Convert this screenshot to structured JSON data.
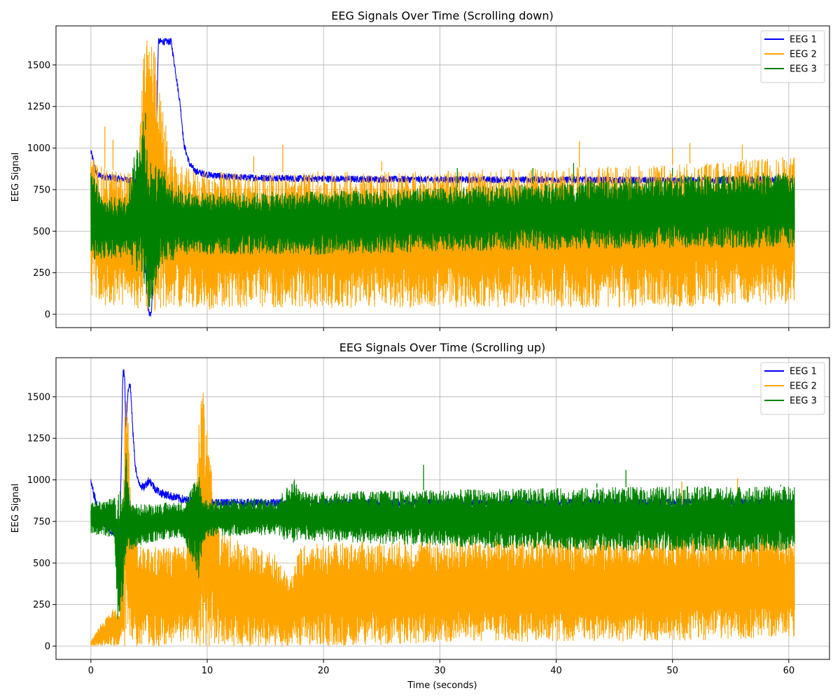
{
  "colors": {
    "EEG 1": "#0000ff",
    "EEG 2": "#ffa500",
    "EEG 3": "#008000",
    "grid": "#b0b0b0"
  },
  "chart_data": [
    {
      "type": "line",
      "title": "EEG Signals Over Time (Scrolling down)",
      "xlabel": "",
      "ylabel": "EEG Signal",
      "xlim": [
        -3,
        63.5
      ],
      "ylim": [
        -80,
        1735
      ],
      "xticks": [
        0,
        10,
        20,
        30,
        40,
        50,
        60
      ],
      "xtick_labels_visible": false,
      "yticks": [
        0,
        250,
        500,
        750,
        1000,
        1250,
        1500
      ],
      "grid": true,
      "legend_position": "top-right",
      "series": [
        {
          "name": "EEG 1",
          "color": "#0000ff",
          "x": [
            0,
            0.5,
            1,
            2,
            3,
            4,
            4.5,
            4.8,
            5.0,
            5.2,
            5.5,
            5.8,
            6.0,
            6.5,
            6.9,
            7.3,
            7.7,
            8.0,
            8.5,
            9.0,
            10,
            12,
            15,
            20,
            30,
            40,
            50,
            60.5
          ],
          "y": [
            980,
            840,
            830,
            820,
            810,
            800,
            500,
            150,
            0,
            0,
            600,
            1640,
            1640,
            1640,
            1640,
            1450,
            1250,
            1020,
            900,
            860,
            840,
            825,
            820,
            815,
            810,
            810,
            805,
            810
          ],
          "noise": 20
        },
        {
          "name": "EEG 2",
          "color": "#ffa500",
          "type": "oscillating-band",
          "x": [
            0,
            1,
            2,
            4,
            4.6,
            5.0,
            5.5,
            6.0,
            7,
            8,
            10,
            15,
            20,
            30,
            40,
            50,
            60.5
          ],
          "high": [
            960,
            880,
            870,
            850,
            1650,
            1650,
            1650,
            1300,
            950,
            880,
            860,
            850,
            860,
            860,
            880,
            900,
            950
          ],
          "low": [
            100,
            50,
            50,
            40,
            0,
            0,
            0,
            0,
            60,
            40,
            30,
            40,
            40,
            40,
            40,
            40,
            60
          ],
          "spikes": [
            [
              1.2,
              1130
            ],
            [
              1.9,
              1050
            ],
            [
              14,
              950
            ],
            [
              16.5,
              1020
            ],
            [
              25,
              920
            ],
            [
              42,
              1040
            ],
            [
              50,
              1000
            ],
            [
              51.5,
              1030
            ],
            [
              56,
              1020
            ]
          ]
        },
        {
          "name": "EEG 3",
          "color": "#008000",
          "type": "oscillating-band",
          "x": [
            0,
            1,
            3,
            4.5,
            5,
            5.5,
            6,
            8,
            10,
            20,
            30,
            40,
            50,
            60.5
          ],
          "high": [
            900,
            700,
            710,
            1210,
            960,
            900,
            880,
            740,
            730,
            740,
            760,
            790,
            830,
            860
          ],
          "low": [
            300,
            340,
            330,
            200,
            0,
            150,
            280,
            360,
            360,
            360,
            380,
            390,
            400,
            400
          ],
          "spikes": [
            [
              4.7,
              1210
            ],
            [
              31.5,
              880
            ],
            [
              38,
              880
            ],
            [
              41.5,
              910
            ],
            [
              50,
              880
            ]
          ]
        }
      ]
    },
    {
      "type": "line",
      "title": "EEG Signals Over Time (Scrolling up)",
      "xlabel": "Time (seconds)",
      "ylabel": "EEG Signal",
      "xlim": [
        -3,
        63.5
      ],
      "ylim": [
        -80,
        1735
      ],
      "xticks": [
        0,
        10,
        20,
        30,
        40,
        50,
        60
      ],
      "xtick_labels_visible": true,
      "yticks": [
        0,
        250,
        500,
        750,
        1000,
        1250,
        1500
      ],
      "grid": true,
      "legend_position": "top-right",
      "series": [
        {
          "name": "EEG 1",
          "color": "#0000ff",
          "x": [
            0,
            0.5,
            1,
            1.5,
            2.0,
            2.5,
            2.75,
            2.9,
            3.0,
            3.2,
            3.4,
            3.6,
            3.8,
            4.0,
            4.5,
            5.0,
            5.5,
            6.0,
            7.0,
            8.0,
            9.0,
            10,
            12,
            20,
            30,
            40,
            50,
            60.5
          ],
          "y": [
            980,
            850,
            750,
            700,
            680,
            700,
            1640,
            1640,
            1300,
            1550,
            1570,
            1300,
            1100,
            1000,
            950,
            1000,
            950,
            920,
            900,
            880,
            870,
            860,
            860,
            860,
            860,
            860,
            860,
            860
          ],
          "noise": 25
        },
        {
          "name": "EEG 2",
          "color": "#ffa500",
          "type": "oscillating-band",
          "x": [
            0,
            1,
            2,
            2.5,
            3.0,
            3.5,
            4,
            6,
            8,
            9,
            9.5,
            10.0,
            11,
            14,
            16,
            17,
            18,
            20,
            30,
            40,
            50,
            60.5
          ],
          "high": [
            30,
            150,
            230,
            180,
            1650,
            900,
            600,
            600,
            600,
            900,
            1650,
            1330,
            700,
            600,
            550,
            400,
            600,
            620,
            640,
            650,
            660,
            680
          ],
          "low": [
            0,
            0,
            0,
            0,
            0,
            0,
            0,
            0,
            0,
            0,
            0,
            0,
            0,
            0,
            0,
            0,
            0,
            0,
            20,
            30,
            30,
            50
          ],
          "spikes": [
            [
              50.8,
              990
            ],
            [
              55.6,
              1010
            ]
          ]
        },
        {
          "name": "EEG 3",
          "color": "#008000",
          "type": "oscillating-band",
          "x": [
            0,
            1,
            2,
            2.3,
            2.8,
            3.0,
            3.3,
            4,
            6,
            8,
            9.3,
            9.6,
            10,
            16,
            17.5,
            18,
            20,
            30,
            40,
            50,
            60.5
          ],
          "high": [
            870,
            880,
            890,
            900,
            1000,
            1200,
            900,
            850,
            860,
            870,
            1050,
            900,
            880,
            890,
            1010,
            930,
            930,
            940,
            950,
            960,
            960
          ],
          "low": [
            680,
            660,
            640,
            120,
            300,
            550,
            560,
            600,
            640,
            650,
            400,
            620,
            660,
            670,
            600,
            640,
            630,
            600,
            580,
            570,
            570
          ],
          "spikes": [
            [
              28.6,
              1090
            ],
            [
              46,
              1060
            ],
            [
              43.5,
              980
            ],
            [
              59.3,
              970
            ]
          ]
        }
      ]
    }
  ]
}
